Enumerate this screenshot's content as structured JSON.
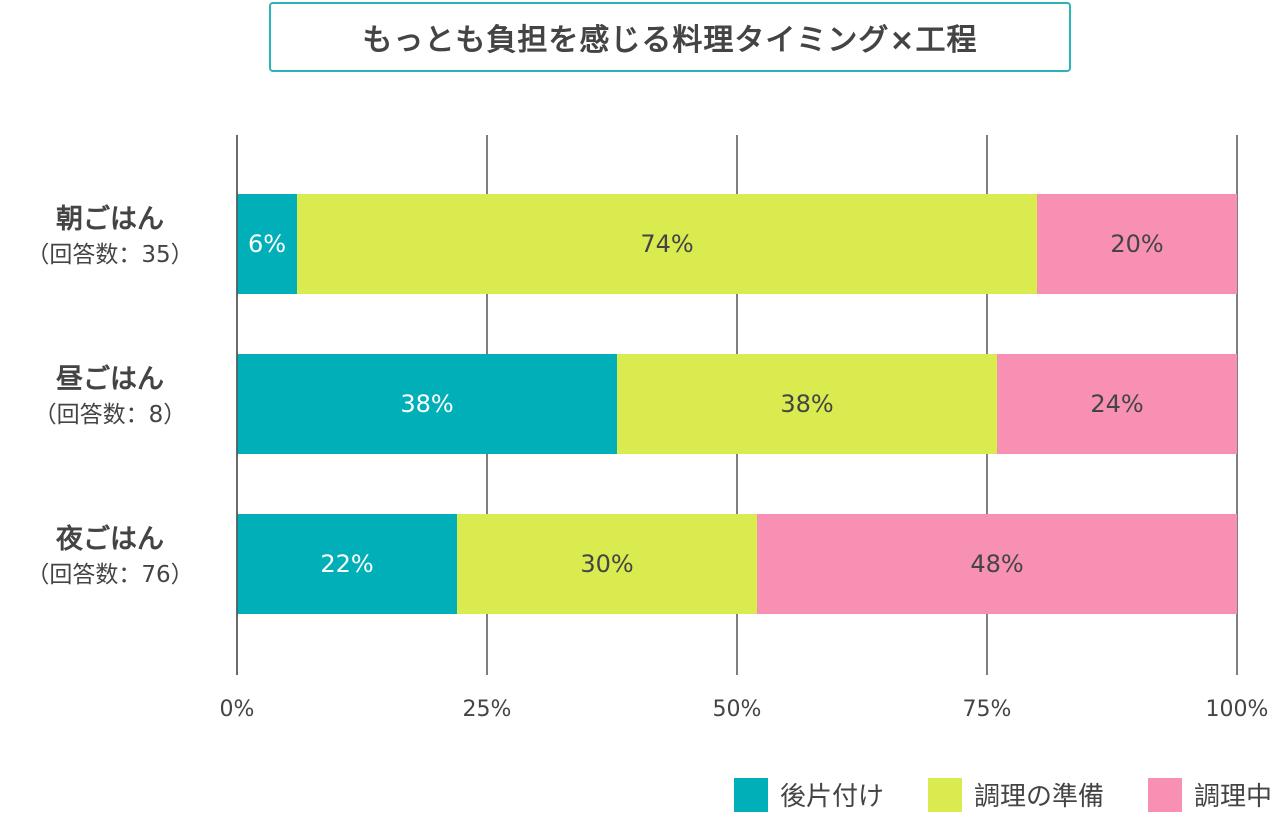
{
  "chart_data": {
    "type": "bar",
    "orientation": "horizontal",
    "stacked": true,
    "title": "もっとも負担を感じる料理タイミング×工程",
    "categories": [
      {
        "name": "朝ごはん",
        "count_label": "（回答数：35）"
      },
      {
        "name": "昼ごはん",
        "count_label": "（回答数：8）"
      },
      {
        "name": "夜ごはん",
        "count_label": "（回答数：76）"
      }
    ],
    "series": [
      {
        "name": "後片付け",
        "color": "#00AFB8",
        "values": [
          6,
          38,
          22
        ],
        "label_color": "#ffffff"
      },
      {
        "name": "調理の準備",
        "color": "#DAEB4F",
        "values": [
          74,
          38,
          30
        ],
        "label_color": "#444444"
      },
      {
        "name": "調理中",
        "color": "#F890B4",
        "values": [
          20,
          24,
          48
        ],
        "label_color": "#444444"
      }
    ],
    "xlim": [
      0,
      100
    ],
    "xticks": [
      "0%",
      "25%",
      "50%",
      "75%",
      "100%"
    ],
    "grid": true,
    "legend": "bottom-right"
  }
}
